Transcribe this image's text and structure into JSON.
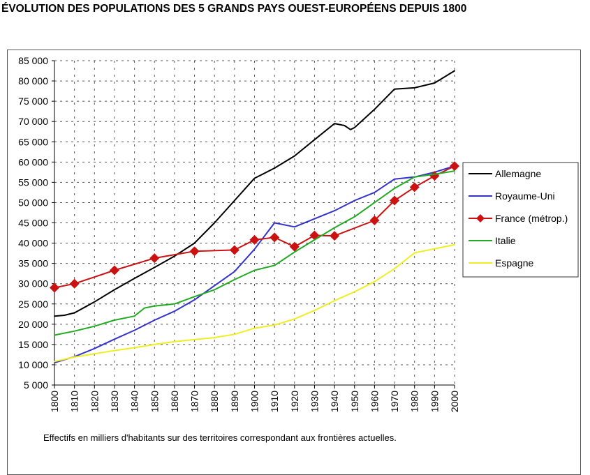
{
  "chart_data": {
    "type": "line",
    "title": "ÉVOLUTION DES POPULATIONS DES 5 GRANDS PAYS OUEST-EUROPÉENS DEPUIS 1800",
    "note": "Effectifs en milliers d'habitants sur des territoires correspondant aux frontières actuelles.",
    "xlabel": "",
    "ylabel": "",
    "xlim": [
      1800,
      2000
    ],
    "ylim": [
      5000,
      85000
    ],
    "x_ticks": [
      "1800",
      "1810",
      "1820",
      "1830",
      "1840",
      "1850",
      "1860",
      "1870",
      "1880",
      "1890",
      "1900",
      "1910",
      "1920",
      "1930",
      "1940",
      "1950",
      "1960",
      "1970",
      "1980",
      "1990",
      "2000"
    ],
    "y_ticks": [
      "5 000",
      "10 000",
      "15 000",
      "20 000",
      "25 000",
      "30 000",
      "35 000",
      "40 000",
      "45 000",
      "50 000",
      "55 000",
      "60 000",
      "65 000",
      "70 000",
      "75 000",
      "80 000",
      "85 000"
    ],
    "grid": true,
    "legend_position": "right",
    "series": [
      {
        "name": "Allemagne",
        "color": "#000000",
        "marker": false,
        "x": [
          1800,
          1805,
          1810,
          1820,
          1830,
          1840,
          1850,
          1860,
          1870,
          1880,
          1890,
          1900,
          1910,
          1920,
          1930,
          1940,
          1945,
          1948,
          1950,
          1960,
          1970,
          1980,
          1990,
          2000
        ],
        "y": [
          22000,
          22200,
          22800,
          25500,
          28500,
          31300,
          34000,
          36800,
          40000,
          45000,
          50500,
          56000,
          58500,
          61500,
          65500,
          69500,
          69000,
          68000,
          68500,
          73000,
          78000,
          78300,
          79500,
          82500
        ]
      },
      {
        "name": "Royaume-Uni",
        "color": "#3333cc",
        "marker": false,
        "x": [
          1800,
          1810,
          1820,
          1830,
          1840,
          1850,
          1860,
          1870,
          1880,
          1890,
          1900,
          1910,
          1920,
          1930,
          1940,
          1950,
          1960,
          1970,
          1980,
          1990,
          2000
        ],
        "y": [
          10500,
          12000,
          14000,
          16300,
          18500,
          21000,
          23200,
          26000,
          29500,
          33000,
          38500,
          45000,
          44000,
          46000,
          48000,
          50500,
          52500,
          55800,
          56300,
          57500,
          59000
        ]
      },
      {
        "name": "France (métrop.)",
        "color": "#cc1111",
        "marker": true,
        "x": [
          1800,
          1810,
          1830,
          1850,
          1870,
          1890,
          1900,
          1910,
          1920,
          1930,
          1940,
          1960,
          1970,
          1980,
          1990,
          2000
        ],
        "y": [
          29000,
          30000,
          33300,
          36300,
          38000,
          38300,
          40800,
          41400,
          39100,
          41900,
          41800,
          45600,
          50500,
          53800,
          56600,
          59000
        ]
      },
      {
        "name": "Italie",
        "color": "#22aa22",
        "marker": false,
        "x": [
          1800,
          1810,
          1820,
          1830,
          1840,
          1845,
          1850,
          1860,
          1870,
          1880,
          1890,
          1900,
          1910,
          1920,
          1930,
          1940,
          1950,
          1960,
          1970,
          1980,
          1990,
          2000
        ],
        "y": [
          17300,
          18300,
          19500,
          21000,
          22000,
          24000,
          24500,
          25000,
          26800,
          28500,
          31000,
          33300,
          34500,
          37800,
          40800,
          43800,
          46500,
          50000,
          53500,
          56300,
          57000,
          57800
        ]
      },
      {
        "name": "Espagne",
        "color": "#eeee22",
        "marker": false,
        "x": [
          1800,
          1810,
          1820,
          1830,
          1840,
          1850,
          1860,
          1870,
          1880,
          1890,
          1900,
          1910,
          1920,
          1930,
          1940,
          1950,
          1960,
          1970,
          1980,
          1990,
          2000
        ],
        "y": [
          10800,
          11900,
          12700,
          13500,
          14200,
          15000,
          15700,
          16200,
          16700,
          17500,
          19000,
          19800,
          21300,
          23400,
          25800,
          28000,
          30500,
          33700,
          37600,
          38600,
          39600
        ]
      }
    ]
  }
}
